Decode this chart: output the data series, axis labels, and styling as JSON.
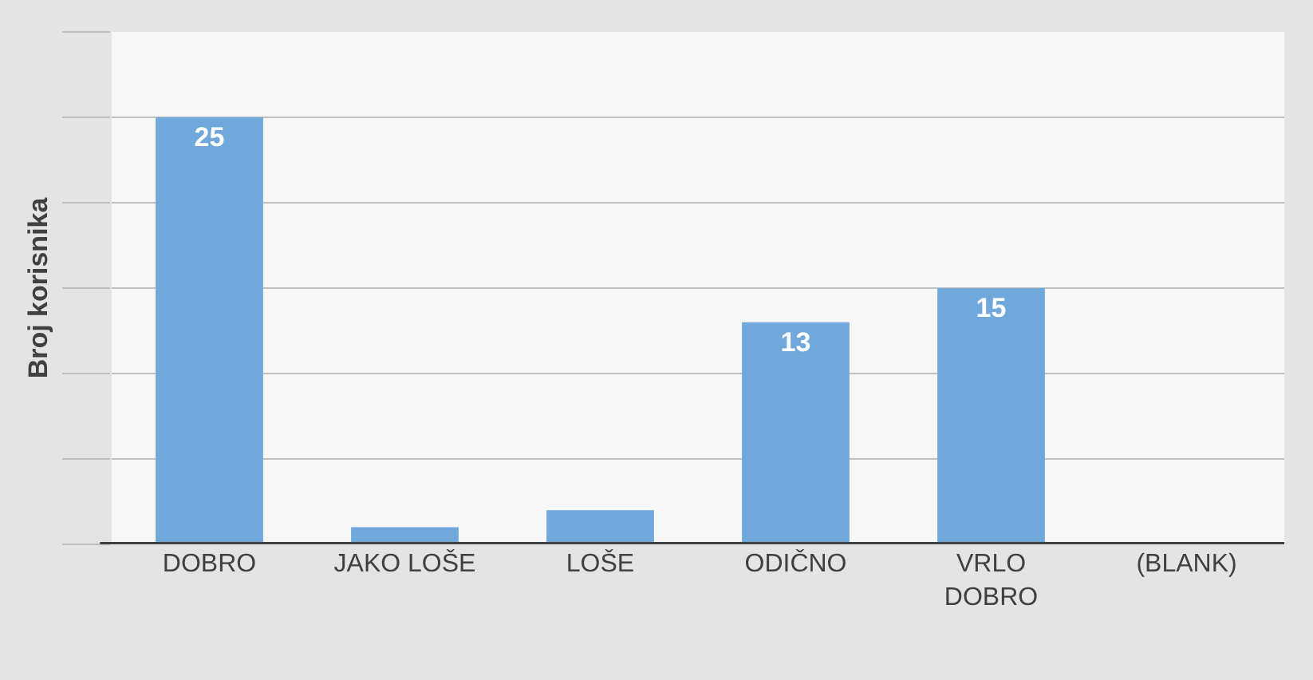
{
  "chart_data": {
    "type": "bar",
    "ylabel": "Broj korisnika",
    "categories": [
      "DOBRO",
      "JAKO LOŠE",
      "LOŠE",
      "ODIČNO",
      "VRLO DOBRO",
      "(BLANK)"
    ],
    "values": [
      25,
      1,
      2,
      13,
      15,
      null
    ],
    "value_labels": [
      "25",
      null,
      null,
      "13",
      "15",
      null
    ],
    "color": "#70a8dc",
    "ylim": [
      0,
      30
    ],
    "yticks": [
      {
        "value": 0,
        "label": null
      },
      {
        "value": 5,
        "label": null
      },
      {
        "value": 10,
        "label": null
      },
      {
        "value": 15,
        "label": null
      },
      {
        "value": 20,
        "label": null
      },
      {
        "value": 25,
        "label": null
      },
      {
        "value": 30,
        "label": null
      }
    ],
    "grid": "y",
    "tick_labels": "x"
  }
}
